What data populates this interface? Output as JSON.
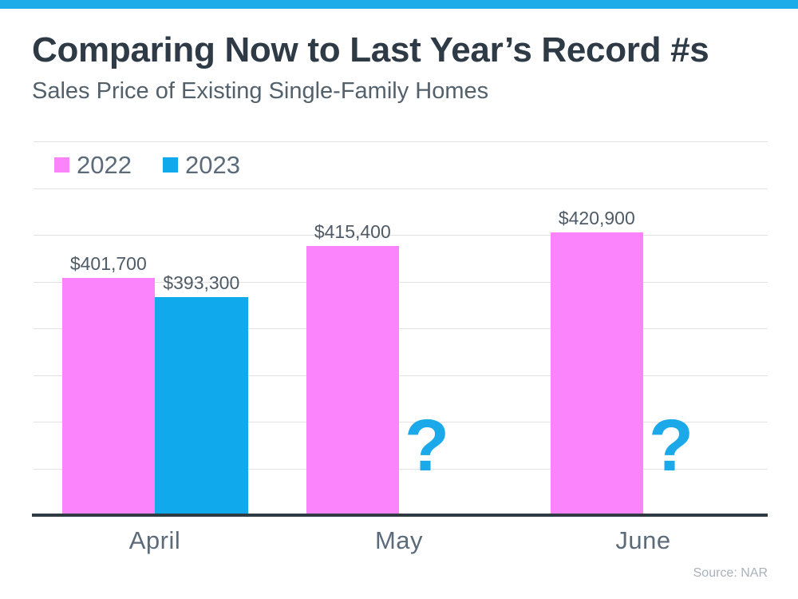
{
  "page": {
    "background": "#FFFFFF",
    "accent_bar_color": "#1CACE9"
  },
  "header": {
    "title": "Comparing Now to Last Year’s Record #s",
    "subtitle": "Sales Price of Existing Single-Family Homes"
  },
  "chart_data": {
    "type": "bar",
    "title": "Comparing Now to Last Year’s Record #s",
    "subtitle": "Sales Price of Existing Single-Family Homes",
    "categories": [
      "April",
      "May",
      "June"
    ],
    "series": [
      {
        "name": "2022",
        "color": "#FB83FB",
        "values": [
          401700,
          415400,
          420900
        ],
        "labels": [
          "$401,700",
          "$415,400",
          "$420,900"
        ]
      },
      {
        "name": "2023",
        "color": "#10A9EB",
        "values": [
          393300,
          null,
          null
        ],
        "labels": [
          "$393,300",
          null,
          null
        ],
        "missing_value_marker": "?",
        "missing_marker_color": "#1BA9E9"
      }
    ],
    "ylim": [
      300000,
      460000
    ],
    "gridline_step": 20000,
    "grid": true,
    "legend_position": "top-left",
    "xlabel": "",
    "ylabel": "",
    "value_prefix": "$"
  },
  "footer": {
    "source": "Source: NAR"
  },
  "colors": {
    "title_text": "#2E3A45",
    "subtitle_text": "#53616C",
    "legend_text": "#5C6B7A",
    "data_label_text": "#4F5B66",
    "axis_label_text": "#5C6B7A",
    "gridline": "#E3E3E3",
    "axis_line": "#2F3A42",
    "source_text": "#A9B1BA"
  }
}
